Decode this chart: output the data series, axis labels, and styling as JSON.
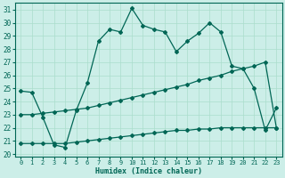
{
  "xlabel": "Humidex (Indice chaleur)",
  "bg_color": "#cceee8",
  "grid_color": "#aaddcc",
  "line_color": "#006655",
  "x_ticks": [
    0,
    1,
    2,
    3,
    4,
    5,
    6,
    7,
    8,
    9,
    10,
    11,
    12,
    13,
    14,
    15,
    16,
    17,
    18,
    19,
    20,
    21,
    22,
    23
  ],
  "y_ticks": [
    20,
    21,
    22,
    23,
    24,
    25,
    26,
    27,
    28,
    29,
    30,
    31
  ],
  "xlim": [
    -0.5,
    23.5
  ],
  "ylim": [
    19.8,
    31.5
  ],
  "line1_x": [
    0,
    1,
    2,
    3,
    4,
    5,
    6,
    7,
    8,
    9,
    10,
    11,
    12,
    13,
    14,
    15,
    16,
    17,
    18,
    19,
    20,
    21,
    22,
    23
  ],
  "line1_y": [
    24.8,
    24.7,
    22.8,
    20.7,
    20.5,
    23.3,
    25.4,
    28.6,
    29.5,
    29.3,
    31.1,
    29.8,
    29.5,
    29.3,
    27.8,
    28.6,
    29.2,
    30.0,
    29.3,
    26.7,
    26.5,
    25.0,
    21.8,
    23.5
  ],
  "line2_x": [
    0,
    1,
    2,
    3,
    4,
    5,
    6,
    7,
    8,
    9,
    10,
    11,
    12,
    13,
    14,
    15,
    16,
    17,
    18,
    19,
    20,
    21,
    22,
    23
  ],
  "line2_y": [
    23.0,
    23.0,
    23.1,
    23.2,
    23.3,
    23.4,
    23.5,
    23.7,
    23.9,
    24.1,
    24.3,
    24.5,
    24.7,
    24.9,
    25.1,
    25.3,
    25.6,
    25.8,
    26.0,
    26.3,
    26.5,
    26.7,
    27.0,
    22.0
  ],
  "line3_x": [
    0,
    1,
    2,
    3,
    4,
    5,
    6,
    7,
    8,
    9,
    10,
    11,
    12,
    13,
    14,
    15,
    16,
    17,
    18,
    19,
    20,
    21,
    22,
    23
  ],
  "line3_y": [
    20.8,
    20.8,
    20.8,
    20.8,
    20.8,
    20.9,
    21.0,
    21.1,
    21.2,
    21.3,
    21.4,
    21.5,
    21.6,
    21.7,
    21.8,
    21.8,
    21.9,
    21.9,
    22.0,
    22.0,
    22.0,
    22.0,
    22.0,
    22.0
  ]
}
